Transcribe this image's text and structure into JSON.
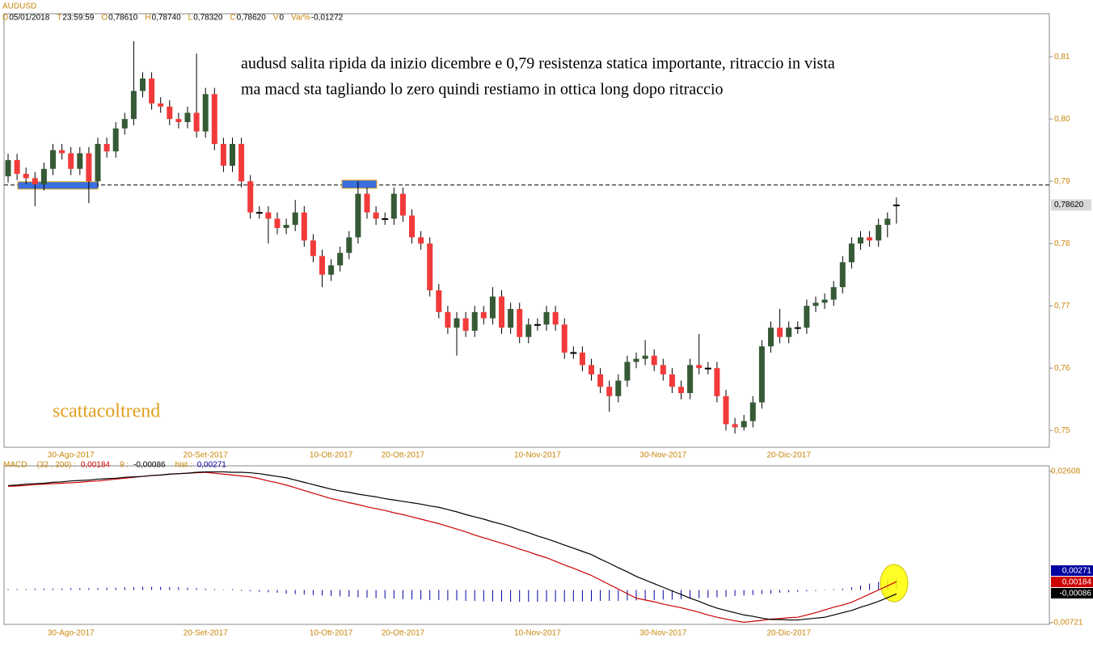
{
  "header": {
    "symbol": "AUDUSD",
    "fields": [
      {
        "key": "D",
        "value": "05/01/2018"
      },
      {
        "key": "T",
        "value": "23:59:59"
      },
      {
        "key": "O",
        "value": "0,78610"
      },
      {
        "key": "H",
        "value": "0,78740"
      },
      {
        "key": "L",
        "value": "0,78320"
      },
      {
        "key": "C",
        "value": "0,78620"
      },
      {
        "key": "V",
        "value": "0"
      },
      {
        "key": "Var%",
        "value": "-0,01272"
      }
    ]
  },
  "chart_data": [
    {
      "type": "candlestick",
      "categories": [
        null,
        null,
        null,
        null,
        null,
        null,
        null,
        "30-Ago-2017",
        null,
        null,
        null,
        null,
        null,
        null,
        null,
        null,
        null,
        null,
        null,
        null,
        null,
        null,
        "20-Set-2017",
        null,
        null,
        null,
        null,
        null,
        null,
        null,
        null,
        null,
        null,
        null,
        null,
        null,
        "10-Ott-2017",
        null,
        null,
        null,
        null,
        null,
        null,
        null,
        "20-Ott-2017",
        null,
        null,
        null,
        null,
        null,
        null,
        null,
        null,
        null,
        null,
        null,
        null,
        null,
        null,
        "10-Nov-2017",
        null,
        null,
        null,
        null,
        null,
        null,
        null,
        null,
        null,
        null,
        null,
        null,
        null,
        "30-Nov-2017",
        null,
        null,
        null,
        null,
        null,
        null,
        null,
        null,
        null,
        null,
        null,
        null,
        null,
        "20-Dic-2017",
        null,
        null,
        null,
        null,
        null,
        null,
        null,
        null,
        null,
        null,
        null,
        null
      ],
      "open": [
        0.7908,
        0.7934,
        0.7912,
        0.7905,
        0.7895,
        0.792,
        0.795,
        0.7945,
        0.792,
        0.7945,
        0.79,
        0.796,
        0.7948,
        0.7985,
        0.8,
        0.8045,
        0.8065,
        0.8025,
        0.802,
        0.8,
        0.7995,
        0.801,
        0.798,
        0.804,
        0.796,
        0.7925,
        0.796,
        0.79,
        0.785,
        0.785,
        0.784,
        0.7825,
        0.783,
        0.785,
        0.7805,
        0.778,
        0.775,
        0.7765,
        0.7785,
        0.781,
        0.788,
        0.785,
        0.784,
        0.784,
        0.788,
        0.7845,
        0.781,
        0.78,
        0.7725,
        0.769,
        0.7665,
        0.768,
        0.766,
        0.769,
        0.768,
        0.7715,
        0.7665,
        0.7695,
        0.765,
        0.767,
        0.767,
        0.769,
        0.767,
        0.7625,
        0.7625,
        0.7605,
        0.759,
        0.757,
        0.7555,
        0.758,
        0.761,
        0.7615,
        0.762,
        0.7605,
        0.759,
        0.757,
        0.756,
        0.7605,
        0.76,
        0.76,
        0.7555,
        0.751,
        0.7505,
        0.7515,
        0.7545,
        0.7635,
        0.7665,
        0.765,
        0.7665,
        0.7665,
        0.77,
        0.7705,
        0.771,
        0.773,
        0.777,
        0.78,
        0.781,
        0.7805,
        0.783,
        0.7861
      ],
      "high": [
        0.7944,
        0.7944,
        0.7922,
        0.7915,
        0.793,
        0.796,
        0.796,
        0.7955,
        0.7955,
        0.7955,
        0.797,
        0.797,
        0.7995,
        0.801,
        0.8125,
        0.8075,
        0.8075,
        0.8035,
        0.803,
        0.801,
        0.802,
        0.8105,
        0.805,
        0.805,
        0.797,
        0.797,
        0.797,
        0.791,
        0.786,
        0.786,
        0.785,
        0.784,
        0.787,
        0.786,
        0.7815,
        0.779,
        0.7775,
        0.7795,
        0.782,
        0.79,
        0.789,
        0.786,
        0.785,
        0.789,
        0.789,
        0.7855,
        0.782,
        0.781,
        0.7735,
        0.77,
        0.769,
        0.769,
        0.77,
        0.77,
        0.773,
        0.7725,
        0.7705,
        0.7705,
        0.768,
        0.768,
        0.77,
        0.77,
        0.768,
        0.7635,
        0.7635,
        0.7615,
        0.76,
        0.758,
        0.759,
        0.762,
        0.7625,
        0.7645,
        0.763,
        0.7615,
        0.76,
        0.758,
        0.7615,
        0.7655,
        0.761,
        0.761,
        0.7565,
        0.752,
        0.7525,
        0.7555,
        0.7645,
        0.7675,
        0.7695,
        0.7675,
        0.7675,
        0.771,
        0.7715,
        0.772,
        0.774,
        0.778,
        0.781,
        0.782,
        0.782,
        0.784,
        0.785,
        0.7874
      ],
      "low": [
        0.7898,
        0.7902,
        0.7895,
        0.786,
        0.7885,
        0.791,
        0.7935,
        0.791,
        0.791,
        0.7865,
        0.789,
        0.7938,
        0.7938,
        0.7975,
        0.799,
        0.8035,
        0.8015,
        0.801,
        0.799,
        0.7985,
        0.7985,
        0.797,
        0.797,
        0.795,
        0.7915,
        0.7915,
        0.789,
        0.784,
        0.784,
        0.78,
        0.7815,
        0.7815,
        0.782,
        0.7795,
        0.777,
        0.773,
        0.774,
        0.7755,
        0.7775,
        0.78,
        0.784,
        0.783,
        0.783,
        0.783,
        0.7835,
        0.78,
        0.779,
        0.7715,
        0.768,
        0.7655,
        0.762,
        0.765,
        0.765,
        0.767,
        0.767,
        0.7655,
        0.7655,
        0.764,
        0.764,
        0.766,
        0.766,
        0.766,
        0.7615,
        0.7615,
        0.7595,
        0.758,
        0.756,
        0.753,
        0.7545,
        0.757,
        0.76,
        0.7605,
        0.7595,
        0.758,
        0.756,
        0.755,
        0.755,
        0.759,
        0.759,
        0.7545,
        0.75,
        0.7495,
        0.75,
        0.7505,
        0.7535,
        0.7625,
        0.764,
        0.764,
        0.7655,
        0.7655,
        0.769,
        0.7695,
        0.77,
        0.772,
        0.776,
        0.779,
        0.7795,
        0.7795,
        0.781,
        0.7832
      ],
      "close": [
        0.7934,
        0.7912,
        0.7905,
        0.7895,
        0.792,
        0.795,
        0.7945,
        0.792,
        0.7945,
        0.79,
        0.796,
        0.7948,
        0.7985,
        0.8,
        0.8045,
        0.8065,
        0.8025,
        0.802,
        0.8,
        0.7995,
        0.801,
        0.798,
        0.804,
        0.796,
        0.7925,
        0.796,
        0.79,
        0.785,
        0.785,
        0.784,
        0.7825,
        0.783,
        0.785,
        0.7805,
        0.778,
        0.775,
        0.7765,
        0.7785,
        0.781,
        0.788,
        0.785,
        0.784,
        0.784,
        0.788,
        0.7845,
        0.781,
        0.78,
        0.7725,
        0.769,
        0.7665,
        0.768,
        0.766,
        0.769,
        0.768,
        0.7715,
        0.7665,
        0.7695,
        0.765,
        0.767,
        0.767,
        0.769,
        0.767,
        0.7625,
        0.7625,
        0.7605,
        0.759,
        0.757,
        0.7555,
        0.758,
        0.761,
        0.7615,
        0.762,
        0.7605,
        0.759,
        0.757,
        0.756,
        0.7605,
        0.76,
        0.76,
        0.7555,
        0.751,
        0.7505,
        0.7515,
        0.7545,
        0.7635,
        0.7665,
        0.765,
        0.7665,
        0.7665,
        0.77,
        0.7705,
        0.771,
        0.773,
        0.777,
        0.78,
        0.781,
        0.7805,
        0.783,
        0.784,
        0.7862
      ],
      "up_color": "#355a35",
      "down_color": "#f23a3a",
      "ylim": [
        0.7473,
        0.8169
      ],
      "yticks": [
        {
          "value": 0.75,
          "label": "0,75"
        },
        {
          "value": 0.76,
          "label": "0,76"
        },
        {
          "value": 0.77,
          "label": "0,77"
        },
        {
          "value": 0.78,
          "label": "0,78"
        },
        {
          "value": 0.79,
          "label": "0,79"
        },
        {
          "value": 0.8,
          "label": "0,80"
        },
        {
          "value": 0.81,
          "label": "0,81"
        }
      ],
      "last_price_label": "0,78620",
      "resistance": 0.7894,
      "annotations": [
        "audusd salita ripida da inizio dicembre e 0,79 resistenza statica importante, ritraccio in vista",
        "ma macd sta tagliando lo zero quindi restiamo in ottica long dopo ritraccio"
      ],
      "watermark": "scattacoltrend"
    },
    {
      "type": "macd",
      "title": "MACD",
      "ylim": [
        -0.00721,
        0.02608
      ],
      "yticks": [
        {
          "value": 0.02608,
          "label": "0,02608"
        },
        {
          "value": -0.00721,
          "label": "-0,00721"
        }
      ],
      "series": [
        {
          "name": "(32 , 200) :",
          "value_label": "0,00184",
          "color": "#cc0000",
          "values": [
            0.0228,
            0.0229,
            0.023,
            0.0232,
            0.0233,
            0.0234,
            0.0235,
            0.0236,
            0.0237,
            0.0239,
            0.024,
            0.0242,
            0.0244,
            0.0246,
            0.0248,
            0.025,
            0.0252,
            0.0253,
            0.0255,
            0.0256,
            0.0257,
            0.0258,
            0.0259,
            0.0257,
            0.0255,
            0.0253,
            0.0251,
            0.0249,
            0.0245,
            0.024,
            0.0236,
            0.0231,
            0.0225,
            0.0219,
            0.0213,
            0.0207,
            0.0201,
            0.0197,
            0.0192,
            0.0188,
            0.0183,
            0.0179,
            0.0175,
            0.017,
            0.0166,
            0.0161,
            0.0156,
            0.0151,
            0.0146,
            0.014,
            0.0134,
            0.0128,
            0.0121,
            0.0115,
            0.0109,
            0.0103,
            0.0097,
            0.009,
            0.0084,
            0.0077,
            0.0071,
            0.0063,
            0.0055,
            0.0048,
            0.004,
            0.0032,
            0.0022,
            0.0012,
            0.0002,
            -0.0008,
            -0.0018,
            -0.0022,
            -0.0026,
            -0.0031,
            -0.0035,
            -0.0039,
            -0.0044,
            -0.0049,
            -0.0055,
            -0.006,
            -0.0064,
            -0.0068,
            -0.0071,
            -0.0069,
            -0.0067,
            -0.0064,
            -0.0063,
            -0.0061,
            -0.006,
            -0.0055,
            -0.005,
            -0.0044,
            -0.0038,
            -0.0033,
            -0.0027,
            -0.0018,
            -0.0009,
            0.0,
            0.0009,
            0.00184
          ]
        },
        {
          "name": "9 :",
          "value_label": "-0,00086",
          "color": "#000000",
          "values": [
            0.023,
            0.0231,
            0.0233,
            0.0234,
            0.0235,
            0.0237,
            0.0238,
            0.024,
            0.0241,
            0.0242,
            0.0244,
            0.0245,
            0.0246,
            0.0248,
            0.0249,
            0.025,
            0.0252,
            0.0253,
            0.0255,
            0.0256,
            0.0257,
            0.0259,
            0.026,
            0.026,
            0.026,
            0.0259,
            0.0259,
            0.0258,
            0.0256,
            0.0253,
            0.025,
            0.0247,
            0.0242,
            0.0237,
            0.0232,
            0.0227,
            0.0222,
            0.0218,
            0.0215,
            0.0211,
            0.0208,
            0.0205,
            0.0201,
            0.0198,
            0.0195,
            0.0192,
            0.0189,
            0.0185,
            0.0182,
            0.0177,
            0.0172,
            0.0166,
            0.0161,
            0.0156,
            0.015,
            0.0145,
            0.0139,
            0.0132,
            0.0126,
            0.0119,
            0.0113,
            0.0106,
            0.0099,
            0.0092,
            0.0085,
            0.0078,
            0.0068,
            0.0059,
            0.0049,
            0.004,
            0.003,
            0.0022,
            0.0014,
            0.0006,
            -0.0002,
            -0.001,
            -0.0018,
            -0.0025,
            -0.0033,
            -0.004,
            -0.0045,
            -0.005,
            -0.0055,
            -0.0058,
            -0.0062,
            -0.0065,
            -0.0065,
            -0.0066,
            -0.0066,
            -0.0064,
            -0.0062,
            -0.006,
            -0.0055,
            -0.005,
            -0.0045,
            -0.0038,
            -0.0032,
            -0.0025,
            -0.0017,
            -0.00086
          ]
        },
        {
          "name": "hist :",
          "value_label": "0,00271",
          "color": "#0000a0",
          "style": "histogram",
          "values": [
            0.0002,
            0.0002,
            0.0002,
            0.0003,
            0.0003,
            0.0003,
            0.0003,
            0.0004,
            0.0004,
            0.0004,
            0.0004,
            0.0005,
            0.0005,
            0.0006,
            0.0006,
            0.0007,
            0.0007,
            0.0007,
            0.0006,
            0.0006,
            0.0005,
            0.0004,
            0.0003,
            0.0002,
            0.0001,
            0.0,
            -0.0002,
            -0.0003,
            -0.0004,
            -0.0005,
            -0.0006,
            -0.0008,
            -0.0009,
            -0.001,
            -0.0011,
            -0.0012,
            -0.0013,
            -0.0014,
            -0.0015,
            -0.0016,
            -0.0017,
            -0.0018,
            -0.0019,
            -0.0019,
            -0.002,
            -0.0021,
            -0.0021,
            -0.0022,
            -0.0022,
            -0.0023,
            -0.0023,
            -0.0024,
            -0.0024,
            -0.0025,
            -0.0025,
            -0.0025,
            -0.0026,
            -0.0026,
            -0.0026,
            -0.0026,
            -0.0026,
            -0.0026,
            -0.0026,
            -0.0025,
            -0.0025,
            -0.0025,
            -0.0024,
            -0.0024,
            -0.0024,
            -0.0023,
            -0.0023,
            -0.0022,
            -0.0022,
            -0.0021,
            -0.0021,
            -0.002,
            -0.0019,
            -0.0018,
            -0.0017,
            -0.0016,
            -0.0015,
            -0.0013,
            -0.0012,
            -0.0011,
            -0.0009,
            -0.0008,
            -0.0006,
            -0.0005,
            -0.0004,
            -0.0003,
            -0.0002,
            -0.0001,
            0.0,
            0.0003,
            0.0006,
            0.001,
            0.0014,
            0.0018,
            0.0022,
            0.00271
          ]
        }
      ]
    }
  ]
}
